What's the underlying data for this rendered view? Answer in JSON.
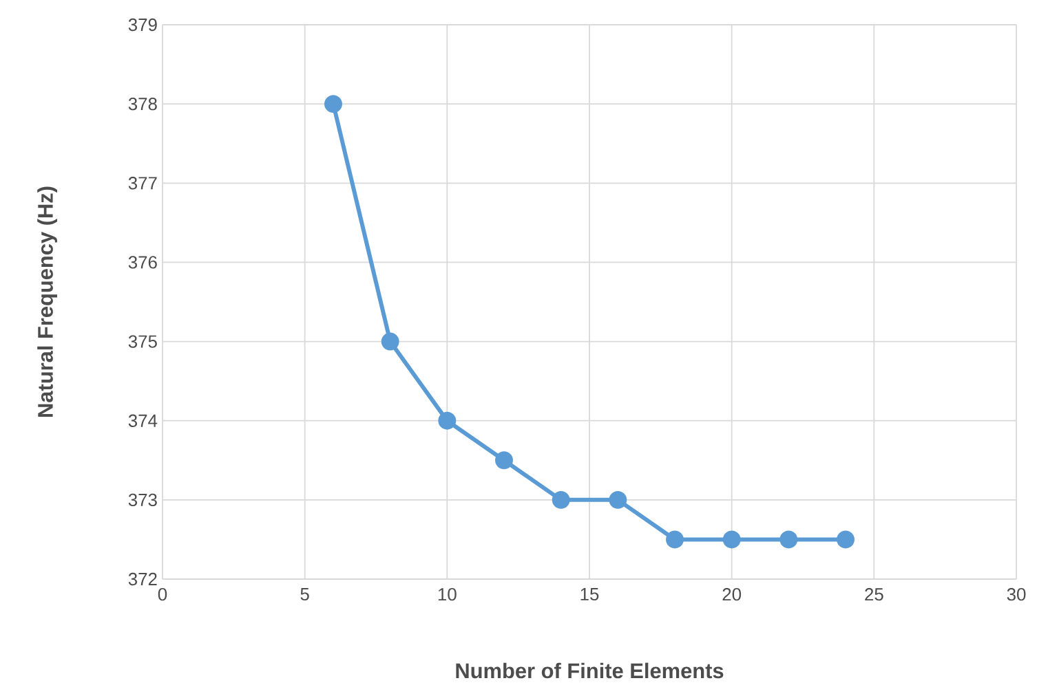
{
  "chart_data": {
    "type": "line",
    "xlabel": "Number of Finite Elements",
    "ylabel": "Natural Frequency (Hz)",
    "x": [
      6,
      8,
      10,
      12,
      14,
      16,
      18,
      20,
      22,
      24
    ],
    "series": [
      {
        "color": "#5b9bd5",
        "values": [
          378,
          375,
          374,
          373.5,
          373,
          373,
          372.5,
          372.5,
          372.5,
          372.5
        ]
      }
    ],
    "xlim": [
      0,
      30
    ],
    "xticks": [
      0,
      5,
      10,
      15,
      20,
      25,
      30
    ],
    "ylim": [
      372,
      379
    ],
    "yticks": [
      372,
      373,
      374,
      375,
      376,
      377,
      378,
      379
    ],
    "grid": true,
    "marker": "circle",
    "line_style": "solid"
  }
}
